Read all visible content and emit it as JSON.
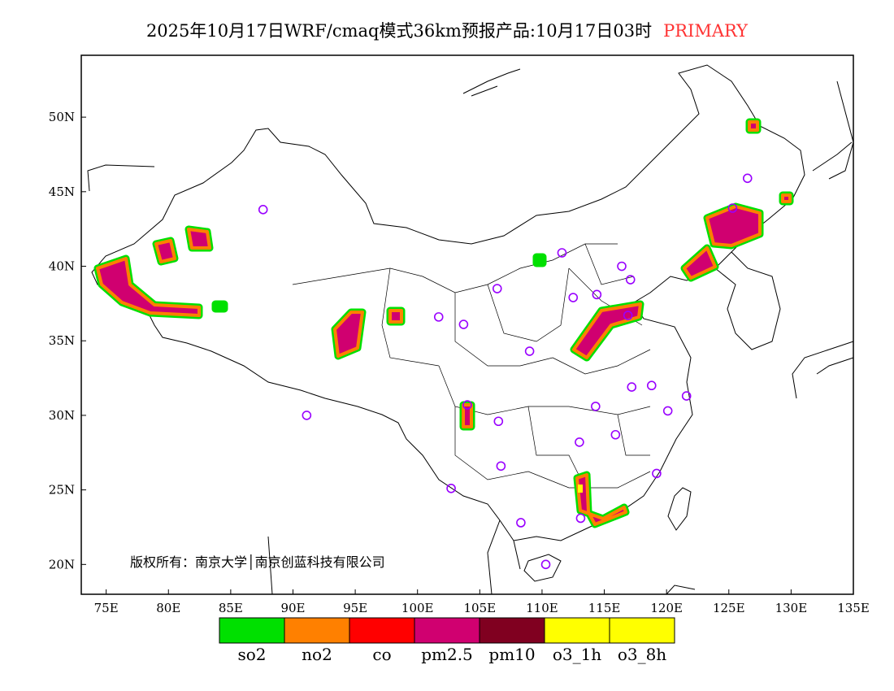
{
  "title": {
    "text": "2025年10月17日WRF/cmaq模式36km预报产品:10月17日03时",
    "tag": "PRIMARY",
    "tag_color": "#ff3333"
  },
  "map": {
    "lon_range": [
      73,
      135
    ],
    "lat_range": [
      18,
      54.15
    ],
    "x_ticks": [
      "75E",
      "80E",
      "85E",
      "90E",
      "95E",
      "100E",
      "105E",
      "110E",
      "115E",
      "120E",
      "125E",
      "130E",
      "135E"
    ],
    "x_tick_values": [
      75,
      80,
      85,
      90,
      95,
      100,
      105,
      110,
      115,
      120,
      125,
      130,
      135
    ],
    "y_ticks": [
      "20N",
      "25N",
      "30N",
      "35N",
      "40N",
      "45N",
      "50N"
    ],
    "y_tick_values": [
      20,
      25,
      30,
      35,
      40,
      45,
      50
    ],
    "copyright": "版权所有：南京大学│南京创蓝科技有限公司",
    "station_color": "#9900ff",
    "stations": [
      [
        87.6,
        43.8
      ],
      [
        106.4,
        38.5
      ],
      [
        101.7,
        36.6
      ],
      [
        103.7,
        36.1
      ],
      [
        109.0,
        34.3
      ],
      [
        111.6,
        40.9
      ],
      [
        112.5,
        37.9
      ],
      [
        114.4,
        38.1
      ],
      [
        116.4,
        40.0
      ],
      [
        117.1,
        39.1
      ],
      [
        116.9,
        36.7
      ],
      [
        126.5,
        45.9
      ],
      [
        125.3,
        43.9
      ],
      [
        117.2,
        31.9
      ],
      [
        118.8,
        32.0
      ],
      [
        114.3,
        30.6
      ],
      [
        104.0,
        30.7
      ],
      [
        106.5,
        29.6
      ],
      [
        91.1,
        30.0
      ],
      [
        113.0,
        28.2
      ],
      [
        115.9,
        28.7
      ],
      [
        120.1,
        30.3
      ],
      [
        121.6,
        31.3
      ],
      [
        106.7,
        26.6
      ],
      [
        102.7,
        25.1
      ],
      [
        119.2,
        26.1
      ],
      [
        113.1,
        23.1
      ],
      [
        108.3,
        22.8
      ],
      [
        110.3,
        20.0
      ]
    ]
  },
  "legend": [
    {
      "label": "so2",
      "color": "#00e000"
    },
    {
      "label": "no2",
      "color": "#ff8000"
    },
    {
      "label": "co",
      "color": "#ff0000"
    },
    {
      "label": "pm2.5",
      "color": "#d00070"
    },
    {
      "label": "pm10",
      "color": "#800020"
    },
    {
      "label": "o3_1h",
      "color": "#ffff00"
    },
    {
      "label": "o3_8h",
      "color": "#ffff00"
    }
  ]
}
